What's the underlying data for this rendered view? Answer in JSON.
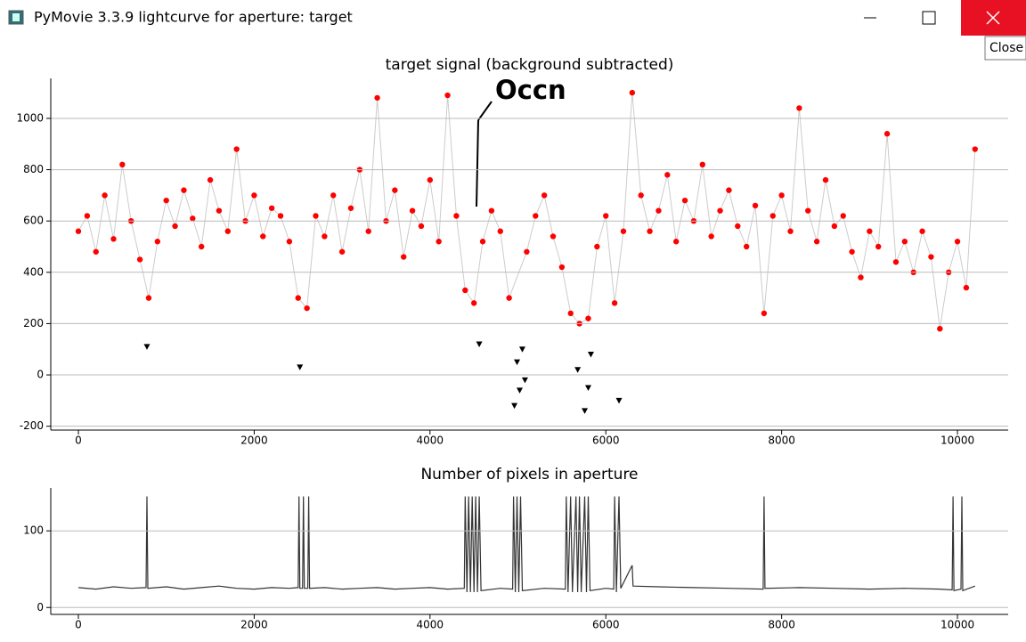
{
  "window": {
    "title": "PyMovie 3.3.9 lightcurve for aperture: target",
    "tooltip": "Close"
  },
  "chart_data": [
    {
      "type": "scatter",
      "title": "target signal (background subtracted)",
      "annotation": "Occn",
      "xlim": [
        -314,
        10577
      ],
      "ylim": [
        -215,
        1156
      ],
      "xticks": [
        0,
        2000,
        4000,
        6000,
        8000,
        10000
      ],
      "yticks": [
        -200,
        0,
        200,
        400,
        600,
        800,
        1000
      ],
      "grid": true,
      "series": [
        {
          "color": "#ff0000",
          "marker": "circle",
          "x": [
            0,
            100,
            200,
            300,
            400,
            500,
            600,
            700,
            800,
            900,
            1000,
            1100,
            1200,
            1300,
            1400,
            1500,
            1600,
            1700,
            1800,
            1900,
            2000,
            2100,
            2200,
            2300,
            2400,
            2500,
            2600,
            2700,
            2800,
            2900,
            3000,
            3100,
            3200,
            3300,
            3400,
            3500,
            3600,
            3700,
            3800,
            3900,
            4000,
            4100,
            4200,
            4300,
            4400,
            4500,
            4600,
            4700,
            4800,
            4900,
            5100,
            5200,
            5300,
            5400,
            5500,
            5600,
            5700,
            5800,
            5900,
            6000,
            6100,
            6200,
            6300,
            6400,
            6500,
            6600,
            6700,
            6800,
            6900,
            7000,
            7100,
            7200,
            7300,
            7400,
            7500,
            7600,
            7700,
            7800,
            7900,
            8000,
            8100,
            8200,
            8300,
            8400,
            8500,
            8600,
            8700,
            8800,
            8900,
            9000,
            9100,
            9200,
            9300,
            9400,
            9500,
            9600,
            9700,
            9800,
            9900,
            10000,
            10100,
            10200
          ],
          "values": [
            560,
            620,
            480,
            700,
            530,
            820,
            600,
            450,
            300,
            520,
            680,
            580,
            720,
            610,
            500,
            760,
            640,
            560,
            880,
            600,
            700,
            540,
            650,
            620,
            520,
            300,
            260,
            620,
            540,
            700,
            480,
            650,
            800,
            560,
            1080,
            600,
            720,
            460,
            640,
            580,
            760,
            520,
            1090,
            620,
            330,
            280,
            520,
            640,
            560,
            300,
            480,
            620,
            700,
            540,
            420,
            240,
            200,
            220,
            500,
            620,
            280,
            560,
            1100,
            700,
            560,
            640,
            780,
            520,
            680,
            600,
            820,
            540,
            640,
            720,
            580,
            500,
            660,
            240,
            620,
            700,
            560,
            1040,
            640,
            520,
            760,
            580,
            620,
            480,
            380,
            560,
            500,
            940,
            440,
            520,
            400,
            560,
            460,
            180,
            400,
            520,
            340,
            880
          ]
        },
        {
          "color": "#000000",
          "marker": "triangle-down",
          "x": [
            780,
            2520,
            4560,
            4960,
            4990,
            5020,
            5050,
            5080,
            5680,
            5760,
            5800,
            5830,
            6150
          ],
          "values": [
            110,
            30,
            120,
            -120,
            50,
            -60,
            100,
            -20,
            20,
            -140,
            -50,
            80,
            -100
          ]
        }
      ]
    },
    {
      "type": "line",
      "title": "Number of pixels in aperture",
      "xlim": [
        -314,
        10577
      ],
      "ylim": [
        -9,
        156
      ],
      "xticks": [
        0,
        2000,
        4000,
        6000,
        8000,
        10000
      ],
      "yticks": [
        0,
        100
      ],
      "grid": true,
      "series": [
        {
          "color": "#333333",
          "x": [
            0,
            200,
            400,
            600,
            770,
            780,
            790,
            1000,
            1200,
            1400,
            1600,
            1800,
            2000,
            2200,
            2400,
            2500,
            2510,
            2520,
            2550,
            2560,
            2570,
            2610,
            2620,
            2630,
            2800,
            3000,
            3200,
            3400,
            3600,
            3800,
            4000,
            4200,
            4390,
            4400,
            4420,
            4440,
            4460,
            4480,
            4500,
            4520,
            4540,
            4560,
            4580,
            4800,
            4940,
            4950,
            4970,
            4990,
            5010,
            5030,
            5050,
            5300,
            5540,
            5550,
            5570,
            5600,
            5620,
            5660,
            5680,
            5700,
            5720,
            5760,
            5780,
            5800,
            5820,
            6000,
            6090,
            6100,
            6120,
            6150,
            6170,
            6300,
            6310,
            6600,
            7000,
            7400,
            7790,
            7800,
            7810,
            8200,
            8600,
            9000,
            9400,
            9800,
            9940,
            9950,
            9960,
            10040,
            10050,
            10060,
            10200
          ],
          "values": [
            26,
            24,
            27,
            25,
            26,
            145,
            25,
            27,
            24,
            26,
            28,
            25,
            24,
            26,
            25,
            26,
            145,
            25,
            25,
            145,
            25,
            25,
            145,
            25,
            26,
            24,
            25,
            26,
            24,
            25,
            26,
            24,
            25,
            145,
            20,
            145,
            20,
            145,
            20,
            145,
            20,
            145,
            22,
            25,
            24,
            145,
            20,
            145,
            20,
            145,
            22,
            25,
            24,
            145,
            20,
            145,
            20,
            145,
            20,
            145,
            20,
            145,
            20,
            145,
            22,
            25,
            24,
            145,
            20,
            145,
            25,
            55,
            28,
            27,
            26,
            25,
            24,
            145,
            25,
            26,
            25,
            24,
            25,
            24,
            23,
            145,
            22,
            24,
            145,
            22,
            28
          ]
        }
      ]
    }
  ]
}
